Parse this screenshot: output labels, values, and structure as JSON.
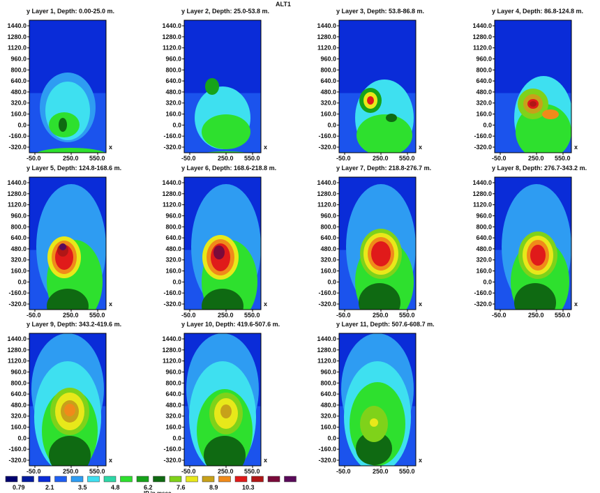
{
  "title": "ALT1",
  "chart_data": {
    "type": "heatmap",
    "title": "ALT1",
    "yaxis_label": "y",
    "xaxis_label": "x",
    "y_ticks": [
      "1440.0",
      "1280.0",
      "1120.0",
      "960.0",
      "800.0",
      "640.0",
      "480.0",
      "320.0",
      "160.0",
      "0.0",
      "-160.0",
      "-320.0"
    ],
    "x_ticks": [
      "-50.0",
      "250.0",
      "550.0"
    ],
    "colorbar": {
      "unit_label": "IP in msec",
      "labels": [
        "0.79",
        "2.1",
        "3.5",
        "4.8",
        "6.2",
        "7.6",
        "8.9",
        "10.3"
      ],
      "colors": [
        "#00006e",
        "#001a9e",
        "#0a2cd8",
        "#1f5ef2",
        "#2e9cf2",
        "#3ee0f0",
        "#2dd7a6",
        "#2ee02e",
        "#16a31a",
        "#0f6a12",
        "#7fd21a",
        "#e8e81a",
        "#c7a11a",
        "#f08a1a",
        "#e01a1a",
        "#b01616",
        "#7a0a3a",
        "#5a0a5a"
      ]
    },
    "layers": [
      {
        "label": "Layer 1, Depth: 0.00-25.0 m."
      },
      {
        "label": "Layer 2, Depth: 25.0-53.8 m."
      },
      {
        "label": "Layer 3, Depth: 53.8-86.8 m."
      },
      {
        "label": "Layer 4, Depth: 86.8-124.8 m."
      },
      {
        "label": "Layer 5, Depth: 124.8-168.6 m."
      },
      {
        "label": "Layer 6, Depth: 168.6-218.8 m."
      },
      {
        "label": "Layer 7, Depth: 218.8-276.7 m."
      },
      {
        "label": "Layer 8, Depth: 276.7-343.2 m."
      },
      {
        "label": "Layer 9, Depth: 343.2-419.6 m."
      },
      {
        "label": "Layer 10, Depth: 419.6-507.6 m."
      },
      {
        "label": "Layer 11, Depth: 507.6-608.7 m."
      }
    ]
  }
}
